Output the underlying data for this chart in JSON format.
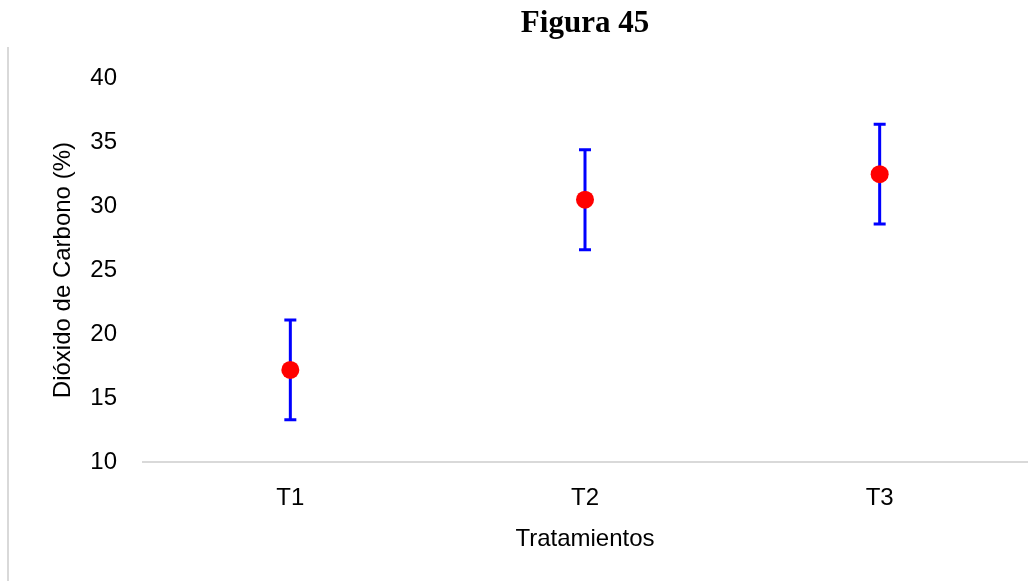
{
  "chart_data": {
    "type": "scatter",
    "title": "Figura 45",
    "xlabel": "Tratamientos",
    "ylabel": "Dióxido de Carbono (%)",
    "categories": [
      "T1",
      "T2",
      "T3"
    ],
    "values": [
      17.2,
      30.5,
      32.5
    ],
    "errors": [
      3.9,
      3.9,
      3.9
    ],
    "color": "#ff0000",
    "marker": "circle",
    "ylim": [
      10,
      40
    ],
    "yticks": [
      10,
      15,
      20,
      25,
      30,
      35,
      40
    ]
  }
}
